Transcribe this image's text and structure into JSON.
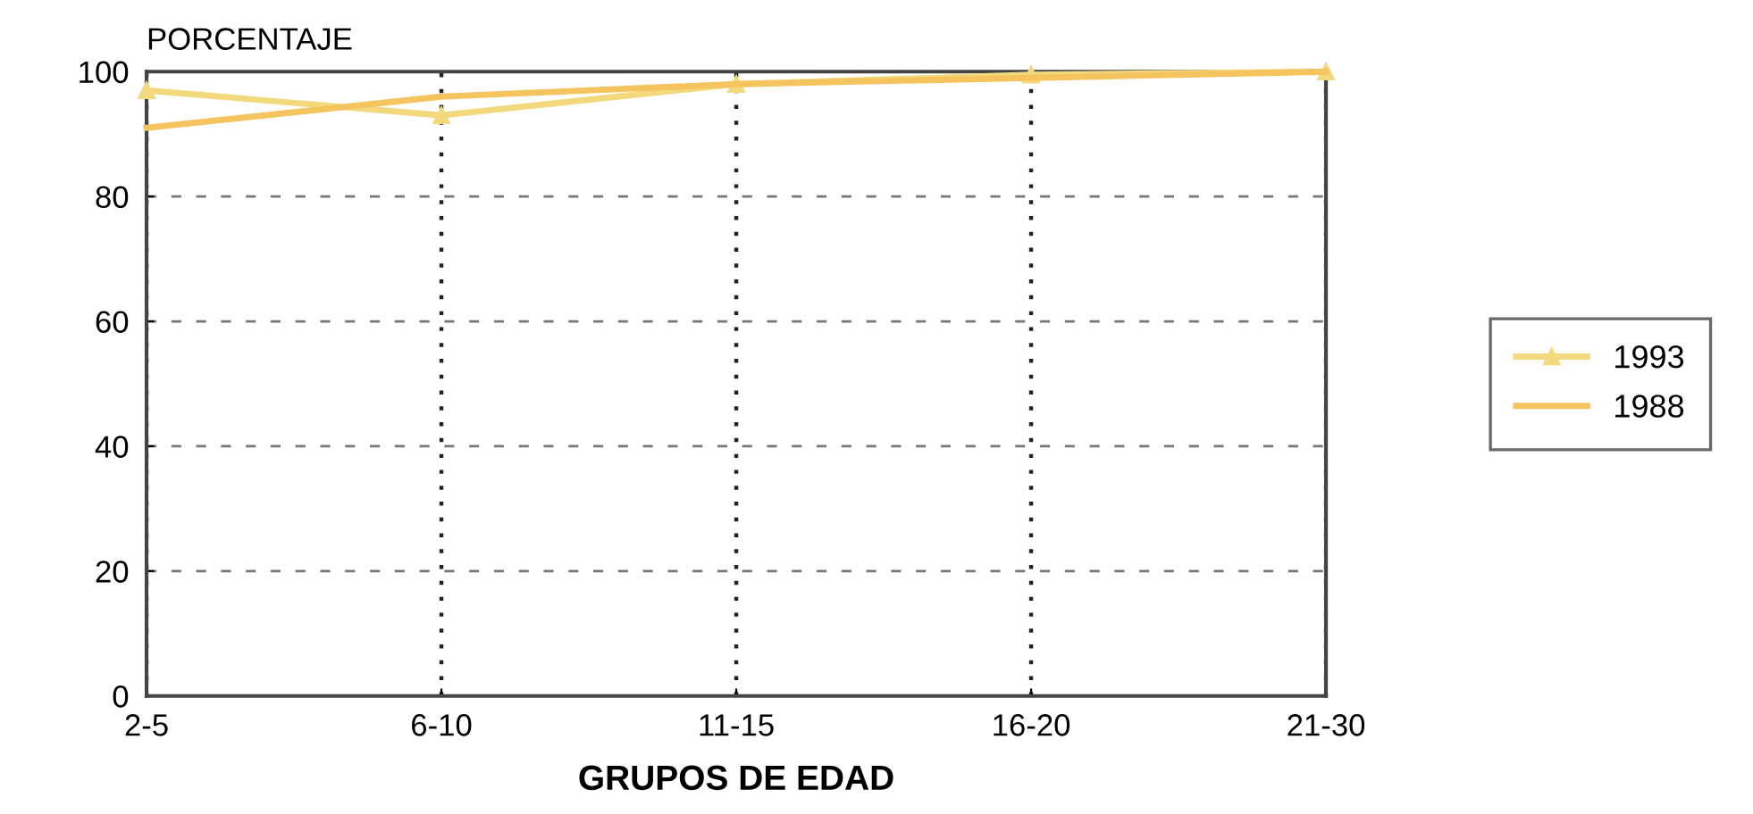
{
  "chart_data": {
    "type": "line",
    "xlabel": "GRUPOS DE EDAD",
    "ylabel": "PORCENTAJE",
    "categories": [
      "2-5",
      "6-10",
      "11-15",
      "16-20",
      "21-30"
    ],
    "series": [
      {
        "name": "1993",
        "color": "#f2d97e",
        "marker": "triangle",
        "values": [
          97,
          93,
          98,
          99.5,
          100
        ]
      },
      {
        "name": "1988",
        "color": "#f5c45e",
        "marker": "none",
        "values": [
          91,
          96,
          98,
          99,
          100
        ]
      }
    ],
    "ylim": [
      0,
      100
    ],
    "yticks": [
      0,
      20,
      40,
      60,
      80,
      100
    ],
    "grid": true,
    "legend": "right",
    "line_style": "solid"
  }
}
